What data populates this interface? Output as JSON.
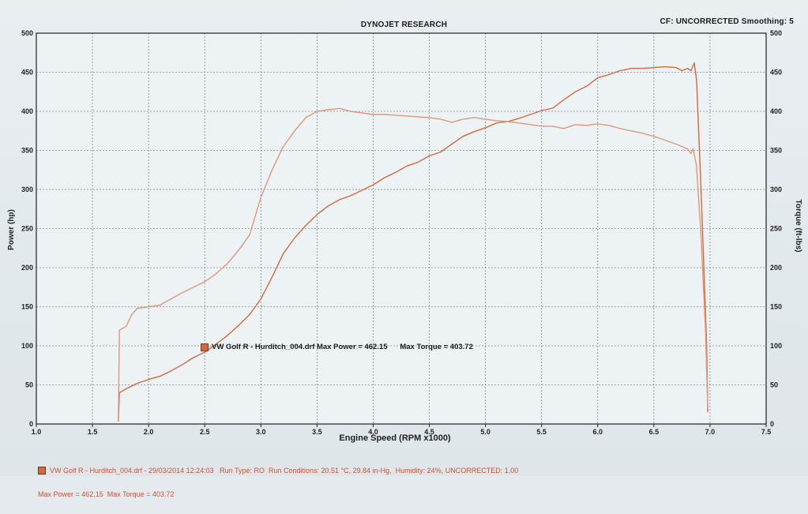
{
  "header": {
    "title": "DYNOJET RESEARCH",
    "right": "CF: UNCORRECTED  Smoothing: 5"
  },
  "legend": {
    "text": "VW Golf R - Hurditch_004.drf Max Power = 462.15      Max Torque = 403.72"
  },
  "footer": {
    "line1": "VW Golf R - Hurditch_004.drf - 29/03/2014 12:24:03   Run Type: RO  Run Conditions: 20.51 °C, 29.84 in-Hg,  Humidity: 24%, UNCORRECTED: 1.00",
    "line2": "Max Power = 462.15  Max Torque = 403.72"
  },
  "chart_data": {
    "type": "line",
    "title": "DYNOJET RESEARCH",
    "xlabel": "Engine Speed (RPM x1000)",
    "ylabel": "Power (hp)",
    "y2label": "Torque (ft-lbs)",
    "xlim": [
      1.0,
      7.5
    ],
    "ylim": [
      0,
      500
    ],
    "y2lim": [
      0,
      500
    ],
    "grid": true,
    "x_ticks": [
      "1.0",
      "1.5",
      "2.0",
      "2.5",
      "3.0",
      "3.5",
      "4.0",
      "4.5",
      "5.0",
      "5.5",
      "6.0",
      "6.5",
      "7.0",
      "7.5"
    ],
    "y_ticks": [
      "0",
      "50",
      "100",
      "150",
      "200",
      "250",
      "300",
      "350",
      "400",
      "450",
      "500"
    ],
    "y2_ticks": [
      "0",
      "50",
      "100",
      "150",
      "200",
      "250",
      "300",
      "350",
      "400",
      "450",
      "500"
    ],
    "colors": {
      "power": "#d4693c",
      "torque": "#e0977a",
      "grid": "#7c8a96",
      "axis": "#222222"
    },
    "series": [
      {
        "name": "VW Golf R - Hurditch_004.drf Max Power = 462.15",
        "axis": "left",
        "points": [
          [
            1.73,
            3
          ],
          [
            1.74,
            40
          ],
          [
            1.8,
            45
          ],
          [
            1.9,
            52
          ],
          [
            2.0,
            57
          ],
          [
            2.1,
            61
          ],
          [
            2.2,
            68
          ],
          [
            2.3,
            76
          ],
          [
            2.4,
            85
          ],
          [
            2.5,
            92
          ],
          [
            2.6,
            102
          ],
          [
            2.7,
            113
          ],
          [
            2.8,
            126
          ],
          [
            2.9,
            140
          ],
          [
            3.0,
            160
          ],
          [
            3.1,
            188
          ],
          [
            3.2,
            218
          ],
          [
            3.3,
            238
          ],
          [
            3.4,
            254
          ],
          [
            3.5,
            268
          ],
          [
            3.6,
            279
          ],
          [
            3.7,
            287
          ],
          [
            3.8,
            292
          ],
          [
            3.9,
            299
          ],
          [
            4.0,
            306
          ],
          [
            4.1,
            315
          ],
          [
            4.2,
            322
          ],
          [
            4.3,
            330
          ],
          [
            4.4,
            335
          ],
          [
            4.5,
            343
          ],
          [
            4.6,
            348
          ],
          [
            4.7,
            358
          ],
          [
            4.8,
            368
          ],
          [
            4.9,
            374
          ],
          [
            5.0,
            379
          ],
          [
            5.1,
            385
          ],
          [
            5.2,
            387
          ],
          [
            5.3,
            391
          ],
          [
            5.4,
            396
          ],
          [
            5.5,
            401
          ],
          [
            5.6,
            404
          ],
          [
            5.7,
            415
          ],
          [
            5.8,
            425
          ],
          [
            5.9,
            432
          ],
          [
            6.0,
            443
          ],
          [
            6.1,
            447
          ],
          [
            6.2,
            452
          ],
          [
            6.3,
            455
          ],
          [
            6.4,
            455
          ],
          [
            6.5,
            456
          ],
          [
            6.6,
            457
          ],
          [
            6.7,
            456
          ],
          [
            6.75,
            452
          ],
          [
            6.8,
            455
          ],
          [
            6.83,
            452
          ],
          [
            6.86,
            462
          ],
          [
            6.88,
            440
          ],
          [
            6.92,
            300
          ],
          [
            6.97,
            100
          ],
          [
            6.98,
            15
          ]
        ]
      },
      {
        "name": "VW Golf R - Hurditch_004.drf Max Torque = 403.72",
        "axis": "right",
        "points": [
          [
            1.73,
            3
          ],
          [
            1.74,
            120
          ],
          [
            1.8,
            125
          ],
          [
            1.85,
            140
          ],
          [
            1.9,
            148
          ],
          [
            2.0,
            150
          ],
          [
            2.1,
            152
          ],
          [
            2.2,
            160
          ],
          [
            2.3,
            168
          ],
          [
            2.4,
            175
          ],
          [
            2.5,
            182
          ],
          [
            2.6,
            192
          ],
          [
            2.7,
            205
          ],
          [
            2.8,
            222
          ],
          [
            2.9,
            242
          ],
          [
            3.0,
            290
          ],
          [
            3.1,
            325
          ],
          [
            3.2,
            355
          ],
          [
            3.3,
            375
          ],
          [
            3.4,
            392
          ],
          [
            3.5,
            400
          ],
          [
            3.6,
            402
          ],
          [
            3.7,
            403.7
          ],
          [
            3.8,
            400
          ],
          [
            3.9,
            398
          ],
          [
            4.0,
            396
          ],
          [
            4.1,
            396
          ],
          [
            4.2,
            395
          ],
          [
            4.3,
            394
          ],
          [
            4.4,
            393
          ],
          [
            4.5,
            392
          ],
          [
            4.6,
            390
          ],
          [
            4.7,
            386
          ],
          [
            4.8,
            390
          ],
          [
            4.9,
            392
          ],
          [
            5.0,
            390
          ],
          [
            5.1,
            388
          ],
          [
            5.2,
            387
          ],
          [
            5.3,
            385
          ],
          [
            5.4,
            383
          ],
          [
            5.5,
            381
          ],
          [
            5.6,
            381
          ],
          [
            5.7,
            378
          ],
          [
            5.8,
            383
          ],
          [
            5.9,
            382
          ],
          [
            6.0,
            384
          ],
          [
            6.1,
            382
          ],
          [
            6.2,
            378
          ],
          [
            6.3,
            375
          ],
          [
            6.4,
            372
          ],
          [
            6.5,
            368
          ],
          [
            6.6,
            363
          ],
          [
            6.7,
            358
          ],
          [
            6.8,
            352
          ],
          [
            6.83,
            346
          ],
          [
            6.85,
            352
          ],
          [
            6.88,
            330
          ],
          [
            6.92,
            240
          ],
          [
            6.96,
            120
          ],
          [
            6.98,
            20
          ]
        ]
      }
    ]
  }
}
